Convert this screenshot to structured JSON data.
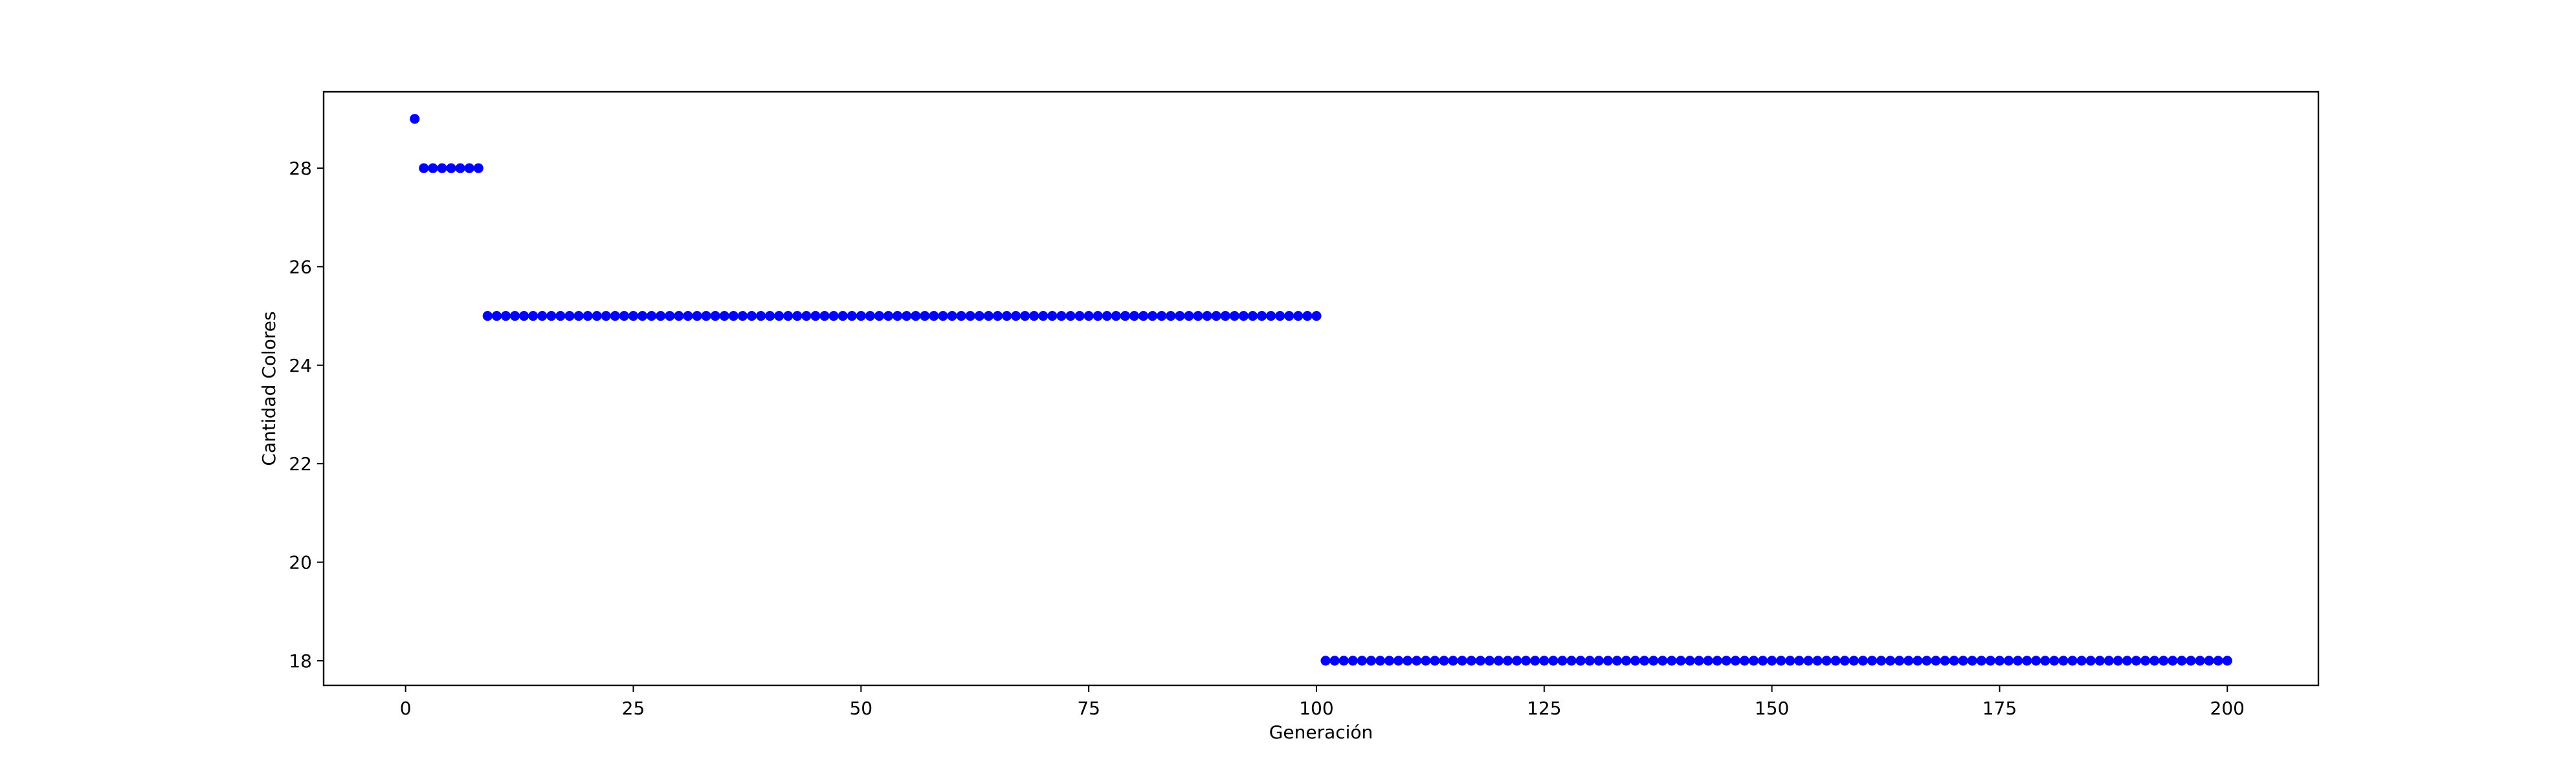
{
  "chart_data": {
    "type": "scatter",
    "title": "",
    "xlabel": "Generación",
    "ylabel": "Cantidad Colores",
    "xlim": [
      -9,
      210
    ],
    "ylim": [
      17.5,
      29.55
    ],
    "xticks": [
      0,
      25,
      50,
      75,
      100,
      125,
      150,
      175,
      200
    ],
    "yticks": [
      18,
      20,
      22,
      24,
      26,
      28
    ],
    "grid": false,
    "legend": "none",
    "marker_color": "#0000ff",
    "segments": [
      {
        "x_from": 1,
        "x_to": 1,
        "y": 29
      },
      {
        "x_from": 2,
        "x_to": 8,
        "y": 28
      },
      {
        "x_from": 9,
        "x_to": 100,
        "y": 25
      },
      {
        "x_from": 101,
        "x_to": 200,
        "y": 18
      }
    ]
  }
}
